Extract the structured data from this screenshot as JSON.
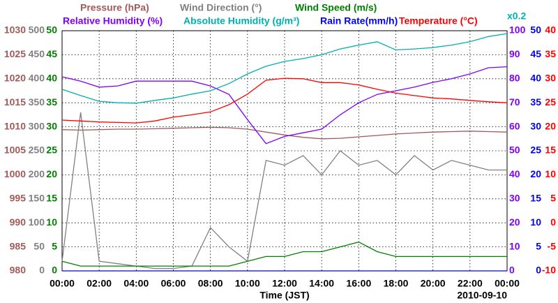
{
  "chart_data": {
    "type": "line",
    "xlabel": "Time (JST)",
    "date": "2010-09-10",
    "note": "x0.2",
    "grid": true,
    "xlim": [
      0,
      24
    ],
    "xticks": [
      {
        "value": 0,
        "label": "00:00"
      },
      {
        "value": 2,
        "label": "02:00"
      },
      {
        "value": 4,
        "label": "04:00"
      },
      {
        "value": 6,
        "label": "06:00"
      },
      {
        "value": 8,
        "label": "08:00"
      },
      {
        "value": 10,
        "label": "10:00"
      },
      {
        "value": 12,
        "label": "12:00"
      },
      {
        "value": 14,
        "label": "14:00"
      },
      {
        "value": 16,
        "label": "16:00"
      },
      {
        "value": 18,
        "label": "18:00"
      },
      {
        "value": 20,
        "label": "20:00"
      },
      {
        "value": 22,
        "label": "22:00"
      },
      {
        "value": 24,
        "label": "00:00"
      }
    ],
    "x": [
      0,
      1,
      2,
      3,
      4,
      5,
      6,
      7,
      8,
      9,
      10,
      11,
      12,
      13,
      14,
      15,
      16,
      17,
      18,
      19,
      20,
      21,
      22,
      23,
      24
    ],
    "axes": [
      {
        "side": "left",
        "color": "#a05a5a",
        "lim": [
          980,
          1030
        ],
        "ticks": [
          980,
          985,
          990,
          995,
          1000,
          1005,
          1010,
          1015,
          1020,
          1025,
          1030
        ]
      },
      {
        "side": "left",
        "color": "#808080",
        "lim": [
          0,
          500
        ],
        "ticks": [
          0,
          50,
          100,
          150,
          200,
          250,
          300,
          350,
          400,
          450,
          500
        ]
      },
      {
        "side": "left",
        "color": "#008000",
        "lim": [
          0,
          50
        ],
        "ticks": [
          0,
          5,
          10,
          15,
          20,
          25,
          30,
          35,
          40,
          45,
          50
        ]
      },
      {
        "side": "right",
        "color": "#8000ff",
        "lim": [
          0,
          100
        ],
        "ticks": [
          0,
          10,
          20,
          30,
          40,
          50,
          60,
          70,
          80,
          90,
          100
        ]
      },
      {
        "side": "right",
        "color": "#0000ff",
        "lim": [
          0,
          50
        ],
        "ticks": [
          0,
          5,
          10,
          15,
          20,
          25,
          30,
          35,
          40,
          45,
          50
        ]
      },
      {
        "side": "right",
        "color": "#ff0000",
        "lim": [
          -10,
          40
        ],
        "ticks": [
          -10,
          -5,
          0,
          5,
          10,
          15,
          20,
          25,
          30,
          35,
          40
        ]
      }
    ],
    "series": [
      {
        "name": "Pressure (hPa)",
        "color": "#a05a5a",
        "axis": 0,
        "values": [
          1009.4,
          1009.3,
          1009.4,
          1009.5,
          1009.5,
          1009.6,
          1009.7,
          1009.8,
          1009.9,
          1009.8,
          1009.5,
          1008.9,
          1008.3,
          1007.8,
          1007.5,
          1007.6,
          1007.9,
          1008.2,
          1008.5,
          1008.7,
          1008.9,
          1009.0,
          1009.1,
          1009.0,
          1008.9
        ]
      },
      {
        "name": "Wind Direction (°)",
        "color": "#808080",
        "axis": 1,
        "values": [
          20,
          330,
          20,
          15,
          10,
          5,
          5,
          10,
          90,
          50,
          20,
          230,
          220,
          240,
          200,
          250,
          220,
          230,
          200,
          240,
          210,
          230,
          220,
          210,
          210
        ]
      },
      {
        "name": "Wind Speed (m/s)",
        "color": "#008000",
        "axis": 2,
        "values": [
          2,
          1,
          1,
          1,
          1,
          1,
          1,
          1,
          1,
          1,
          2,
          3,
          3,
          4,
          4,
          5,
          6,
          4,
          3,
          3,
          3,
          3,
          3,
          3,
          3
        ]
      },
      {
        "name": "Relative Humidity (%)",
        "color": "#8000ff",
        "axis": 3,
        "values": [
          80.8,
          79,
          76.5,
          77,
          79,
          79,
          79,
          79,
          77,
          73.5,
          63,
          53,
          56,
          57.5,
          59,
          65,
          70,
          73.5,
          75,
          76.5,
          78.5,
          80,
          82,
          84.6,
          85
        ]
      },
      {
        "name": "Absolute Humidity (g/m³)",
        "color": "#00b0b0",
        "axis": 4,
        "values": [
          37.8,
          36.5,
          35.3,
          35,
          34.9,
          35.5,
          36,
          36.8,
          37.5,
          39,
          41,
          42.6,
          43.6,
          44.2,
          45,
          46.2,
          47,
          47.7,
          46,
          46.2,
          46.5,
          47,
          47.7,
          48.8,
          49.4
        ]
      },
      {
        "name": "Rain Rate(mm/h)",
        "color": "#0000ff",
        "axis": 4,
        "values": [
          0,
          0,
          0,
          0,
          0,
          0,
          0,
          0,
          0,
          0,
          0,
          0,
          0,
          0,
          0,
          0,
          0,
          0,
          0,
          0,
          0,
          0,
          0,
          0,
          0
        ]
      },
      {
        "name": "Temperature (°C)",
        "color": "#ff0000",
        "axis": 5,
        "values": [
          21.4,
          21.2,
          21,
          20.9,
          20.8,
          21.2,
          22,
          22.5,
          23.1,
          24.6,
          26.8,
          29.7,
          30.1,
          30,
          29.2,
          29.2,
          28.7,
          27.8,
          27,
          26.5,
          26,
          25.8,
          25.5,
          25.2,
          25
        ]
      }
    ]
  }
}
